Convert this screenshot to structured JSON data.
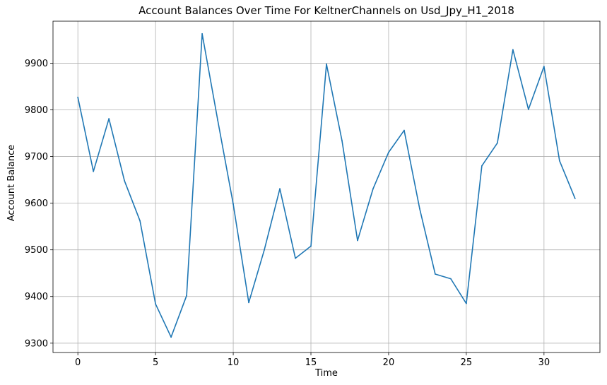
{
  "chart_data": {
    "type": "line",
    "title": "Account Balances Over Time For KeltnerChannels on Usd_Jpy_H1_2018",
    "xlabel": "Time",
    "ylabel": "Account Balance",
    "xlim": [
      -1.6,
      33.6
    ],
    "ylim": [
      9280,
      9990
    ],
    "xticks": [
      0,
      5,
      10,
      15,
      20,
      25,
      30
    ],
    "yticks": [
      9300,
      9400,
      9500,
      9600,
      9700,
      9800,
      9900
    ],
    "grid": true,
    "series": [
      {
        "color": "#1f77b4",
        "x": [
          0,
          1,
          2,
          3,
          4,
          5,
          6,
          7,
          8,
          9,
          10,
          11,
          12,
          13,
          14,
          15,
          16,
          17,
          18,
          19,
          20,
          21,
          22,
          23,
          24,
          25,
          26,
          27,
          28,
          29,
          30,
          31,
          32
        ],
        "values": [
          9827,
          9668,
          9781,
          9648,
          9562,
          9384,
          9313,
          9402,
          9963,
          9778,
          9598,
          9387,
          9500,
          9631,
          9482,
          9508,
          9898,
          9734,
          9520,
          9631,
          9709,
          9756,
          9588,
          9448,
          9438,
          9385,
          9680,
          9729,
          9929,
          9801,
          9893,
          9691,
          9610
        ]
      }
    ]
  }
}
